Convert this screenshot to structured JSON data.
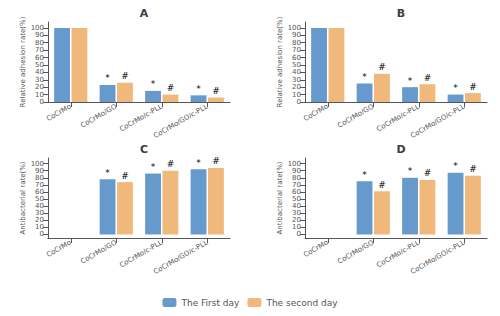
{
  "chart_data": [
    {
      "type": "bar",
      "title": "A",
      "categories": [
        "CoCrMo",
        "CoCrMo/GO",
        "CoCrMo/c-PLL",
        "CoCrMo/GO/c-PLL"
      ],
      "ylabel": "Relative adhesion rate(%)",
      "ylim": [
        0,
        108
      ],
      "yticks": [
        0,
        10,
        20,
        30,
        40,
        50,
        60,
        70,
        80,
        90,
        100
      ],
      "grid": false,
      "legend": "bottom",
      "series": [
        {
          "name": "The First day",
          "color": "#6699CC",
          "values": [
            100,
            23,
            15,
            9
          ],
          "annotations": [
            null,
            "*",
            "*",
            "*"
          ]
        },
        {
          "name": "The second day",
          "color": "#F0B87A",
          "values": [
            100,
            26,
            10,
            6
          ],
          "annotations": [
            null,
            "#",
            "#",
            "#"
          ]
        }
      ]
    },
    {
      "type": "bar",
      "title": "B",
      "categories": [
        "CoCrMo",
        "CoCrMo/GO",
        "CoCrMo/c-PLL",
        "CoCrMo/GO/c-PLL"
      ],
      "ylabel": "Relative adhesion rate(%)",
      "ylim": [
        0,
        108
      ],
      "yticks": [
        0,
        10,
        20,
        30,
        40,
        50,
        60,
        70,
        80,
        90,
        100
      ],
      "grid": false,
      "legend": "bottom",
      "series": [
        {
          "name": "The First day",
          "color": "#6699CC",
          "values": [
            100,
            25,
            20,
            10
          ],
          "annotations": [
            null,
            "*",
            "*",
            "*"
          ]
        },
        {
          "name": "The second day",
          "color": "#F0B87A",
          "values": [
            100,
            38,
            24,
            12
          ],
          "annotations": [
            null,
            "#",
            "#",
            "#"
          ]
        }
      ]
    },
    {
      "type": "bar",
      "title": "C",
      "categories": [
        "CoCrMo",
        "CoCrMo/GO",
        "CoCrMo/c-PLL",
        "CoCrMo/GO/c-PLL"
      ],
      "ylabel": "Antibacterial rate(%)",
      "ylim": [
        -5,
        108
      ],
      "yticks": [
        0,
        10,
        20,
        30,
        40,
        50,
        60,
        70,
        80,
        90,
        100
      ],
      "grid": false,
      "legend": "bottom",
      "series": [
        {
          "name": "The First day",
          "color": "#6699CC",
          "values": [
            0,
            78,
            86,
            92
          ],
          "annotations": [
            null,
            "*",
            "*",
            "*"
          ]
        },
        {
          "name": "The second day",
          "color": "#F0B87A",
          "values": [
            0,
            74,
            90,
            94
          ],
          "annotations": [
            null,
            "#",
            "#",
            "#"
          ]
        }
      ]
    },
    {
      "type": "bar",
      "title": "D",
      "categories": [
        "CoCrMo",
        "CoCrMo/GO",
        "CoCrMo/c-PLL",
        "CoCrMo/GO/c-PLL"
      ],
      "ylabel": "Antibacterial rate(%)",
      "ylim": [
        -5,
        108
      ],
      "yticks": [
        0,
        10,
        20,
        30,
        40,
        50,
        60,
        70,
        80,
        90,
        100
      ],
      "grid": false,
      "legend": "bottom",
      "series": [
        {
          "name": "The First day",
          "color": "#6699CC",
          "values": [
            0,
            75,
            80,
            87
          ],
          "annotations": [
            null,
            "*",
            "*",
            "*"
          ]
        },
        {
          "name": "The second day",
          "color": "#F0B87A",
          "values": [
            0,
            61,
            77,
            83
          ],
          "annotations": [
            null,
            "#",
            "#",
            "#"
          ]
        }
      ]
    }
  ]
}
